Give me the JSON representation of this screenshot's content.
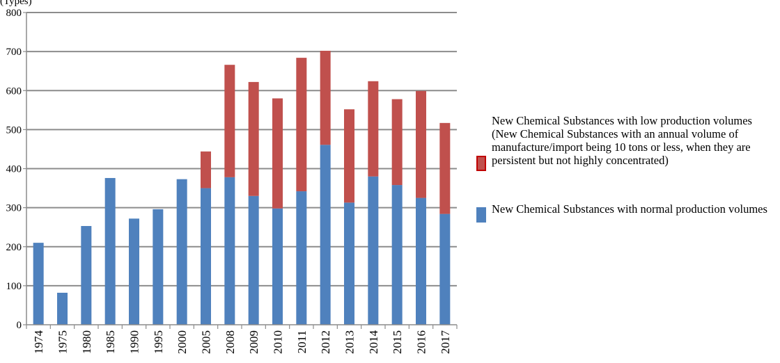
{
  "chart_data": {
    "type": "bar",
    "stacked": true,
    "ylabel": "(Types)",
    "ylim": [
      0,
      800
    ],
    "yticks": [
      0,
      100,
      200,
      300,
      400,
      500,
      600,
      700,
      800
    ],
    "grid": true,
    "legend_position": "right",
    "categories": [
      "1974",
      "1975",
      "1980",
      "1985",
      "1990",
      "1995",
      "2000",
      "2005",
      "2008",
      "2009",
      "2010",
      "2011",
      "2012",
      "2013",
      "2014",
      "2015",
      "2016",
      "2017"
    ],
    "series": [
      {
        "name": "New Chemical Substances with normal production volumes",
        "color": "#4f81bd",
        "values": [
          210,
          82,
          253,
          376,
          272,
          296,
          373,
          350,
          378,
          330,
          298,
          342,
          461,
          313,
          380,
          358,
          325,
          284
        ]
      },
      {
        "name": "New Chemical Substances with low production volumes (New Chemical Substances with an annual volume of manufacture/import being 10 tons or less, when they are persistent but not highly concentrated)",
        "color": "#c0504d",
        "values": [
          0,
          0,
          0,
          0,
          0,
          0,
          0,
          94,
          288,
          292,
          282,
          342,
          241,
          239,
          244,
          220,
          274,
          233
        ]
      }
    ]
  }
}
